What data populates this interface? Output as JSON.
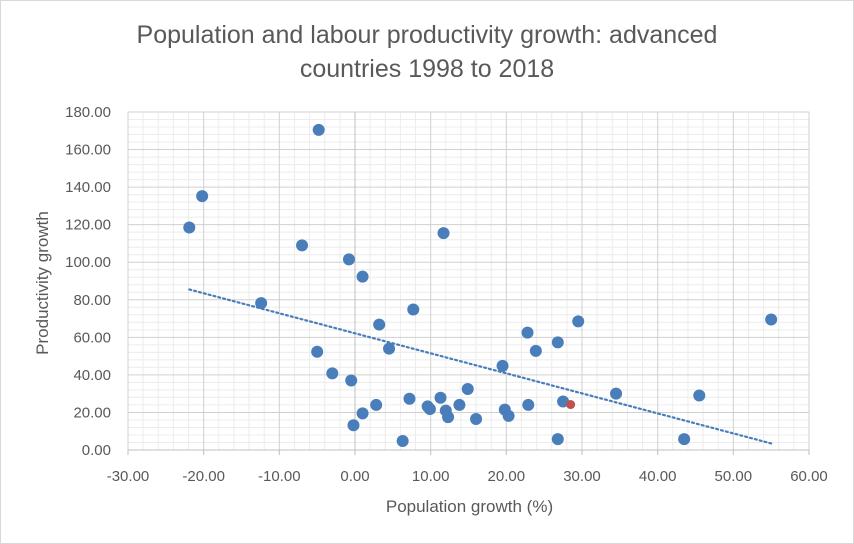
{
  "chart_data": {
    "type": "scatter",
    "title": "Population and labour productivity growth: advanced countries 1998 to 2018",
    "xlabel": "Population growth (%)",
    "ylabel": "Productivity growth",
    "xlim": [
      -30,
      60
    ],
    "ylim": [
      0,
      180
    ],
    "x_ticks": [
      "-30.00",
      "-20.00",
      "-10.00",
      "0.00",
      "10.00",
      "20.00",
      "30.00",
      "40.00",
      "50.00",
      "60.00"
    ],
    "y_ticks": [
      "0.00",
      "20.00",
      "40.00",
      "60.00",
      "80.00",
      "100.00",
      "120.00",
      "140.00",
      "160.00",
      "180.00"
    ],
    "grid": true,
    "minor_grid": true,
    "trendline": {
      "type": "linear",
      "style": "dotted",
      "x_range": [
        -21.9,
        55.0
      ],
      "y_start": 85.5,
      "y_end": 3.5
    },
    "colors": {
      "point": "#4a7ebb",
      "highlight": "#c0504d",
      "trend": "#4a7ebb",
      "text": "#595959"
    },
    "series": [
      {
        "points": [
          [
            -21.9,
            118.5
          ],
          [
            -20.2,
            135.2
          ],
          [
            -4.8,
            170.5
          ],
          [
            -7.0,
            109.0
          ],
          [
            -12.4,
            78.2
          ],
          [
            -0.8,
            101.5
          ],
          [
            1.0,
            92.3
          ],
          [
            -5.0,
            52.3
          ],
          [
            -3.0,
            40.8
          ],
          [
            -0.5,
            37.0
          ],
          [
            -0.2,
            13.2
          ],
          [
            1.0,
            19.5
          ],
          [
            2.8,
            24.0
          ],
          [
            3.2,
            66.8
          ],
          [
            4.5,
            54.0
          ],
          [
            6.3,
            4.8
          ],
          [
            7.2,
            27.3
          ],
          [
            7.7,
            74.8
          ],
          [
            9.6,
            23.2
          ],
          [
            9.9,
            21.8
          ],
          [
            11.3,
            27.8
          ],
          [
            11.7,
            115.5
          ],
          [
            12.0,
            21.0
          ],
          [
            12.3,
            17.5
          ],
          [
            13.8,
            24.0
          ],
          [
            14.9,
            32.5
          ],
          [
            16.0,
            16.5
          ],
          [
            19.5,
            44.8
          ],
          [
            19.8,
            21.5
          ],
          [
            20.3,
            18.2
          ],
          [
            22.8,
            62.5
          ],
          [
            22.9,
            24.0
          ],
          [
            23.9,
            52.8
          ],
          [
            26.8,
            57.3
          ],
          [
            26.8,
            5.8
          ],
          [
            27.5,
            25.8
          ],
          [
            29.5,
            68.5
          ],
          [
            34.5,
            30.0
          ],
          [
            43.5,
            5.8
          ],
          [
            45.5,
            29.0
          ],
          [
            55.0,
            69.5
          ]
        ]
      }
    ],
    "highlighted_points": [
      [
        28.5,
        24.2
      ]
    ]
  }
}
